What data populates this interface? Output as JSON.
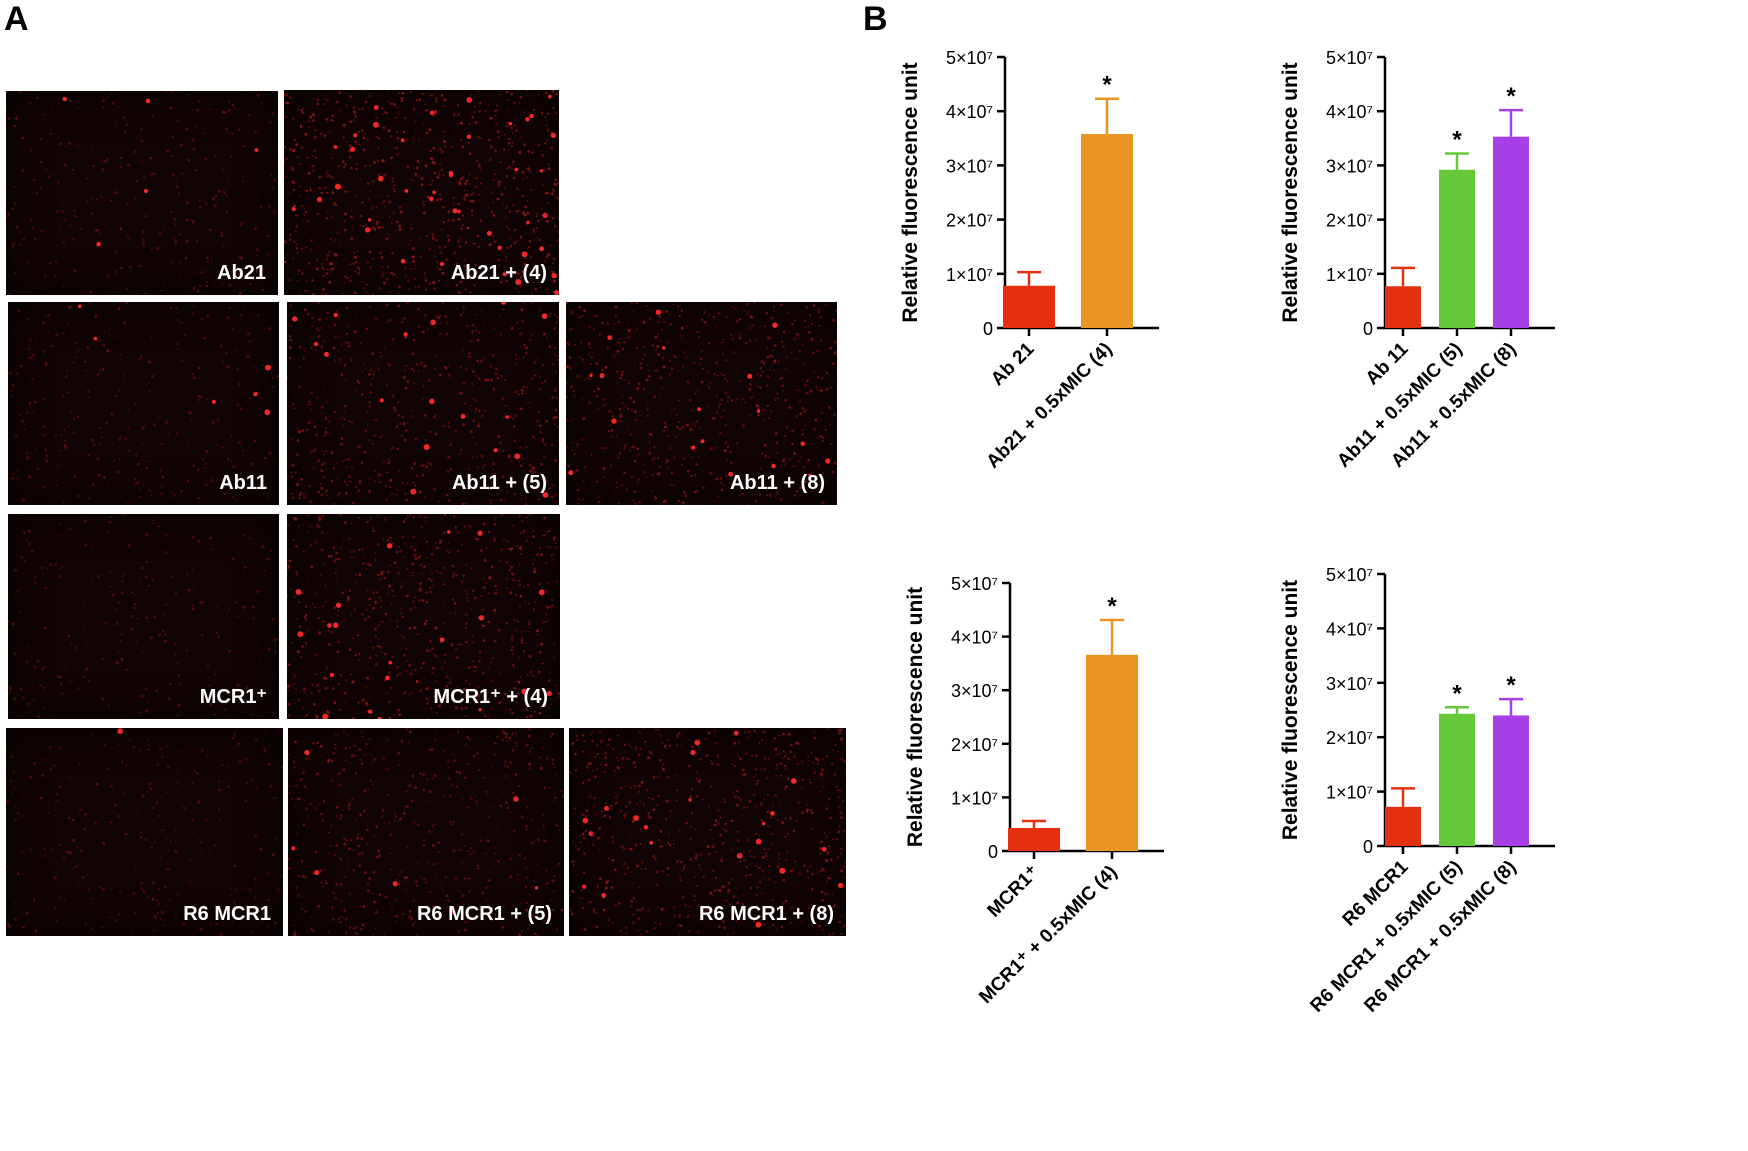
{
  "panels": {
    "a_label": "A",
    "b_label": "B"
  },
  "micrographs": [
    {
      "caption": "Ab21",
      "density": 0.25
    },
    {
      "caption": "Ab21 + (4)",
      "density": 1.0
    },
    {
      "caption": "Ab11",
      "density": 0.25
    },
    {
      "caption": "Ab11 + (5)",
      "density": 0.7
    },
    {
      "caption": "Ab11 + (8)",
      "density": 0.75
    },
    {
      "caption": "MCR1⁺",
      "density": 0.15
    },
    {
      "caption": "MCR1⁺ + (4)",
      "density": 0.8
    },
    {
      "caption": "R6 MCR1",
      "density": 0.2
    },
    {
      "caption": "R6 MCR1 + (5)",
      "density": 0.55
    },
    {
      "caption": "R6 MCR1 + (8)",
      "density": 0.85
    }
  ],
  "chart_data": [
    {
      "type": "bar",
      "ylabel": "Relative fluorescence unit",
      "ylim": [
        0,
        50000000
      ],
      "yticks": [
        "0",
        "1×10⁷",
        "2×10⁷",
        "3×10⁷",
        "4×10⁷",
        "5×10⁷"
      ],
      "categories": [
        "Ab 21",
        "Ab21 + 0.5xMIC (4)"
      ],
      "values": [
        7800000,
        35800000
      ],
      "errors": [
        2500000,
        6500000
      ],
      "annotations": [
        "",
        "*"
      ],
      "colors": [
        "#e3300e",
        "#e89523"
      ]
    },
    {
      "type": "bar",
      "ylabel": "Relative fluorescence unit",
      "ylim": [
        0,
        50000000
      ],
      "yticks": [
        "0",
        "1×10⁷",
        "2×10⁷",
        "3×10⁷",
        "4×10⁷",
        "5×10⁷"
      ],
      "categories": [
        "Ab 11",
        "Ab11 + 0.5xMIC (5)",
        "Ab11 + 0.5xMIC (8)"
      ],
      "values": [
        7700000,
        29200000,
        35300000
      ],
      "errors": [
        3400000,
        3000000,
        4900000
      ],
      "annotations": [
        "",
        "*",
        "*"
      ],
      "colors": [
        "#e3300e",
        "#67c83a",
        "#a640e6"
      ]
    },
    {
      "type": "bar",
      "ylabel": "Relative fluorescence unit",
      "ylim": [
        0,
        50000000
      ],
      "yticks": [
        "0",
        "1×10⁷",
        "2×10⁷",
        "3×10⁷",
        "4×10⁷",
        "5×10⁷"
      ],
      "categories": [
        "MCR1⁺",
        "MCR1⁺ + 0.5xMIC (4)"
      ],
      "values": [
        4300000,
        36600000
      ],
      "errors": [
        1300000,
        6500000
      ],
      "annotations": [
        "",
        "*"
      ],
      "colors": [
        "#e3300e",
        "#e89523"
      ]
    },
    {
      "type": "bar",
      "ylabel": "Relative fluorescence unit",
      "ylim": [
        0,
        50000000
      ],
      "yticks": [
        "0",
        "1×10⁷",
        "2×10⁷",
        "3×10⁷",
        "4×10⁷",
        "5×10⁷"
      ],
      "categories": [
        "R6 MCR1",
        "R6 MCR1 + 0.5xMIC (5)",
        "R6 MCR1 + 0.5xMIC (8)"
      ],
      "values": [
        7200000,
        24300000,
        24000000
      ],
      "errors": [
        3400000,
        1200000,
        3000000
      ],
      "annotations": [
        "",
        "*",
        "*"
      ],
      "colors": [
        "#e3300e",
        "#67c83a",
        "#a640e6"
      ]
    }
  ]
}
